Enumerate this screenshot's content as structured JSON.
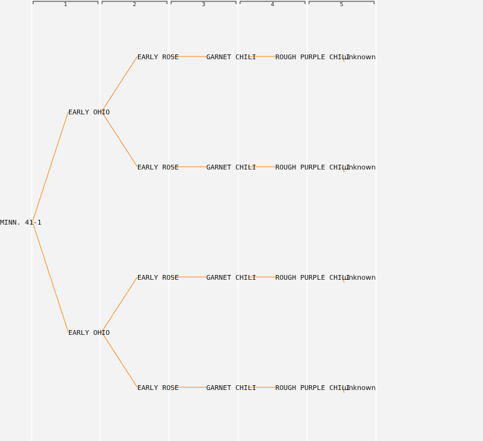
{
  "colors": {
    "background": "#f3f3f3",
    "edge": "#ff8c1a",
    "column_line": "#ffffff",
    "bracket": "#333333",
    "text": "#111111"
  },
  "generations": [
    "1",
    "2",
    "3",
    "4",
    "5"
  ],
  "tree": {
    "label": "MINN. 41-1",
    "children": [
      {
        "label": "EARLY OHIO",
        "children": [
          {
            "label": "EARLY ROSE",
            "children": [
              {
                "label": "GARNET CHILI",
                "children": [
                  {
                    "label": "ROUGH PURPLE CHILI",
                    "children": [
                      {
                        "label": "unknown"
                      }
                    ]
                  }
                ]
              }
            ]
          },
          {
            "label": "EARLY ROSE",
            "children": [
              {
                "label": "GARNET CHILI",
                "children": [
                  {
                    "label": "ROUGH PURPLE CHILI",
                    "children": [
                      {
                        "label": "unknown"
                      }
                    ]
                  }
                ]
              }
            ]
          }
        ]
      },
      {
        "label": "EARLY OHIO",
        "children": [
          {
            "label": "EARLY ROSE",
            "children": [
              {
                "label": "GARNET CHILI",
                "children": [
                  {
                    "label": "ROUGH PURPLE CHILI",
                    "children": [
                      {
                        "label": "unknown"
                      }
                    ]
                  }
                ]
              }
            ]
          },
          {
            "label": "EARLY ROSE",
            "children": [
              {
                "label": "GARNET CHILI",
                "children": [
                  {
                    "label": "ROUGH PURPLE CHILI",
                    "children": [
                      {
                        "label": "unknown"
                      }
                    ]
                  }
                ]
              }
            ]
          }
        ]
      }
    ]
  }
}
